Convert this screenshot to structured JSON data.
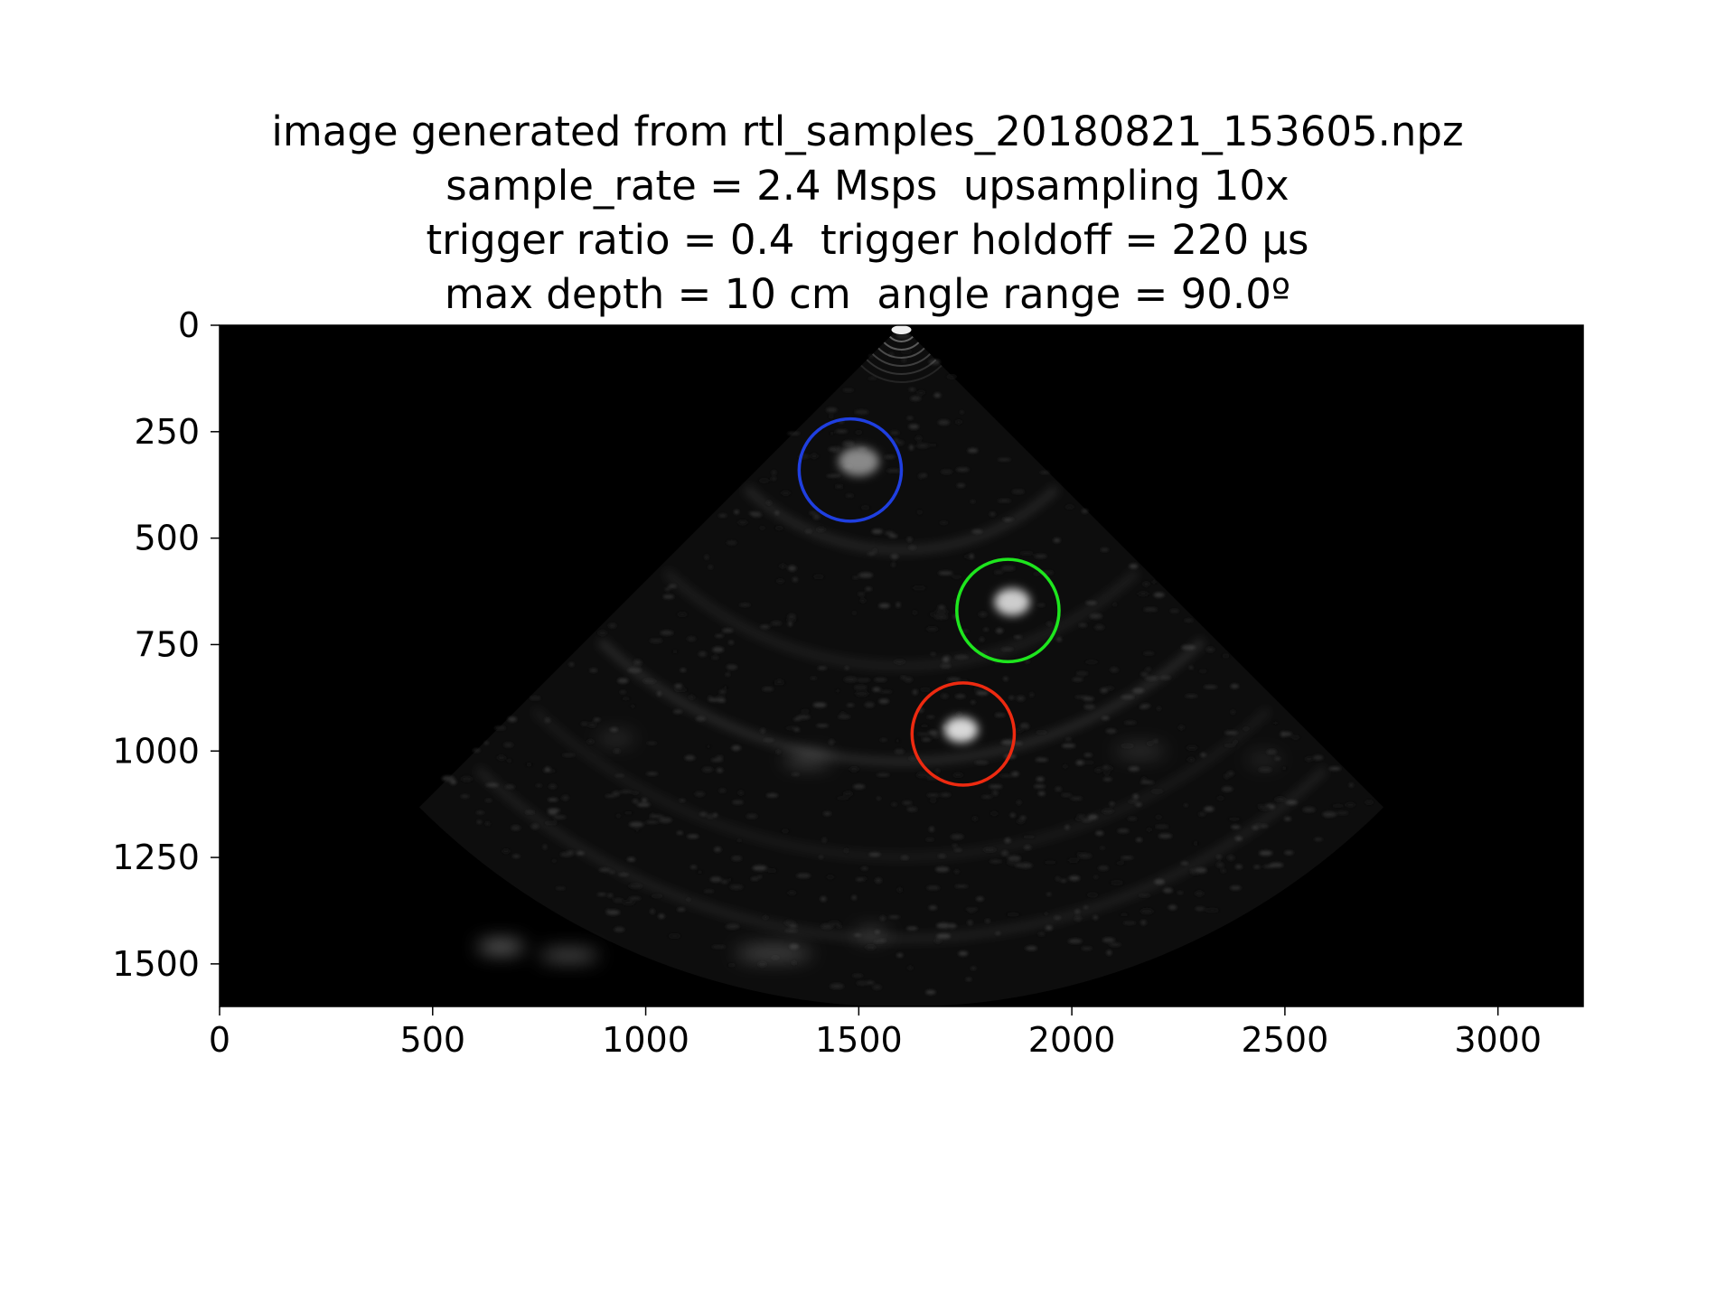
{
  "title_lines": [
    "image generated from rtl_samples_20180821_153605.npz",
    "sample_rate = 2.4 Msps  upsampling 10x",
    "trigger ratio = 0.4  trigger holdoff = 220 µs",
    "max depth = 10 cm  angle range = 90.0º"
  ],
  "chart_data": {
    "type": "heatmap",
    "title": "image generated from rtl_samples_20180821_153605.npz\nsample_rate = 2.4 Msps  upsampling 10x\ntrigger ratio = 0.4  trigger holdoff = 220 µs\nmax depth = 10 cm  angle range = 90.0º",
    "xlabel": "",
    "ylabel": "",
    "xlim": [
      0,
      3200
    ],
    "ylim": [
      1600,
      0
    ],
    "x_ticks": [
      0,
      500,
      1000,
      1500,
      2000,
      2500,
      3000
    ],
    "y_ticks": [
      0,
      250,
      500,
      750,
      1000,
      1250,
      1500
    ],
    "x_tick_labels": [
      "0",
      "500",
      "1000",
      "1500",
      "2000",
      "2500",
      "3000"
    ],
    "y_tick_labels": [
      "0",
      "250",
      "500",
      "750",
      "1000",
      "1250",
      "1500"
    ],
    "colormap": "gray",
    "background": "#000000",
    "fan": {
      "apex": [
        1600,
        0
      ],
      "max_radius": 1600,
      "angle_range_deg": 90
    },
    "annotations": [
      {
        "shape": "circle",
        "color": "#1f3fe0",
        "center": [
          1480,
          340
        ],
        "radius": 120
      },
      {
        "shape": "circle",
        "color": "#1ee61e",
        "center": [
          1850,
          670
        ],
        "radius": 120
      },
      {
        "shape": "circle",
        "color": "#ee2a10",
        "center": [
          1745,
          960
        ],
        "radius": 120
      }
    ]
  }
}
